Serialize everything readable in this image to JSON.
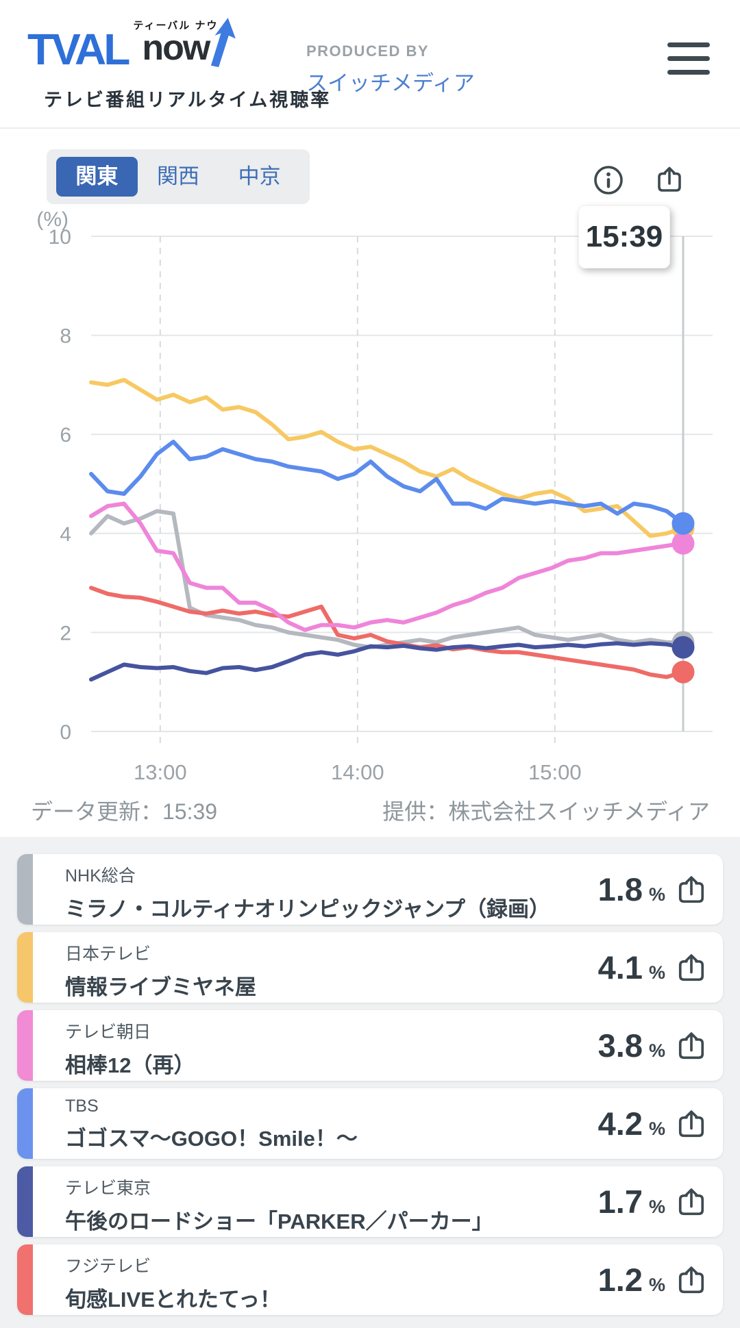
{
  "header": {
    "brand": {
      "main": "TVAL",
      "sub": "now",
      "ruby": "ティーバル ナウ",
      "tagline": "テレビ番組リアルタイム視聴率"
    },
    "produced_by_label": "PRODUCED BY",
    "produced_by_name": "スイッチメディア"
  },
  "region_tabs": [
    {
      "label": "関東",
      "active": true
    },
    {
      "label": "関西",
      "active": false
    },
    {
      "label": "中京",
      "active": false
    }
  ],
  "time_tooltip": "15:39",
  "chart_data": {
    "type": "line",
    "title": "テレビ番組リアルタイム視聴率（関東）",
    "y_axis_label": "(%)",
    "ylim": [
      0,
      10
    ],
    "y_ticks": [
      0,
      2,
      4,
      6,
      8,
      10
    ],
    "x_start": "12:39",
    "x_end": "15:39",
    "step_minutes": 5,
    "t_max": 180,
    "grid": true,
    "x_ticks": [
      {
        "label": "13:00",
        "t": 21
      },
      {
        "label": "14:00",
        "t": 81
      },
      {
        "label": "15:00",
        "t": 141
      }
    ],
    "series": [
      {
        "name": "NHK総合",
        "color": "#b4b8bf",
        "end_value": 1.8,
        "values": [
          4.0,
          4.35,
          4.2,
          4.3,
          4.45,
          4.4,
          2.5,
          2.35,
          2.3,
          2.25,
          2.15,
          2.1,
          2.0,
          1.95,
          1.9,
          1.85,
          1.75,
          1.7,
          1.75,
          1.8,
          1.85,
          1.8,
          1.9,
          1.95,
          2.0,
          2.05,
          2.1,
          1.95,
          1.9,
          1.85,
          1.9,
          1.95,
          1.85,
          1.8,
          1.85,
          1.8,
          1.8
        ]
      },
      {
        "name": "日本テレビ",
        "color": "#f7c963",
        "end_value": 4.1,
        "values": [
          7.05,
          7.0,
          7.1,
          6.9,
          6.7,
          6.8,
          6.65,
          6.75,
          6.5,
          6.55,
          6.45,
          6.2,
          5.9,
          5.95,
          6.05,
          5.85,
          5.7,
          5.75,
          5.6,
          5.45,
          5.25,
          5.15,
          5.3,
          5.1,
          4.95,
          4.8,
          4.7,
          4.8,
          4.85,
          4.7,
          4.45,
          4.5,
          4.55,
          4.25,
          3.95,
          4.0,
          4.1
        ]
      },
      {
        "name": "フジテレビ",
        "color": "#ee6b67",
        "end_value": 1.2,
        "values": [
          2.9,
          2.78,
          2.72,
          2.7,
          2.62,
          2.52,
          2.42,
          2.38,
          2.44,
          2.38,
          2.42,
          2.35,
          2.32,
          2.42,
          2.52,
          1.95,
          1.88,
          1.95,
          1.82,
          1.76,
          1.7,
          1.74,
          1.66,
          1.7,
          1.64,
          1.6,
          1.6,
          1.55,
          1.5,
          1.45,
          1.4,
          1.35,
          1.3,
          1.25,
          1.15,
          1.1,
          1.2
        ]
      },
      {
        "name": "テレビ朝日",
        "color": "#ef85d9",
        "end_value": 3.8,
        "values": [
          4.35,
          4.55,
          4.6,
          4.2,
          3.65,
          3.6,
          3.0,
          2.9,
          2.9,
          2.6,
          2.6,
          2.45,
          2.2,
          2.05,
          2.15,
          2.15,
          2.1,
          2.2,
          2.25,
          2.2,
          2.3,
          2.4,
          2.55,
          2.65,
          2.8,
          2.9,
          3.1,
          3.2,
          3.3,
          3.45,
          3.5,
          3.6,
          3.6,
          3.65,
          3.7,
          3.75,
          3.8
        ]
      },
      {
        "name": "テレビ東京",
        "color": "#46539e",
        "end_value": 1.7,
        "values": [
          1.05,
          1.2,
          1.35,
          1.3,
          1.28,
          1.3,
          1.22,
          1.18,
          1.28,
          1.3,
          1.24,
          1.3,
          1.42,
          1.55,
          1.6,
          1.55,
          1.62,
          1.72,
          1.7,
          1.73,
          1.68,
          1.65,
          1.7,
          1.72,
          1.68,
          1.72,
          1.75,
          1.7,
          1.72,
          1.75,
          1.72,
          1.76,
          1.78,
          1.75,
          1.78,
          1.76,
          1.7
        ]
      },
      {
        "name": "TBS",
        "color": "#5b8bed",
        "end_value": 4.2,
        "values": [
          5.2,
          4.85,
          4.8,
          5.15,
          5.6,
          5.85,
          5.5,
          5.55,
          5.7,
          5.6,
          5.5,
          5.45,
          5.35,
          5.3,
          5.25,
          5.1,
          5.2,
          5.45,
          5.15,
          4.95,
          4.85,
          5.1,
          4.6,
          4.6,
          4.5,
          4.7,
          4.65,
          4.6,
          4.65,
          4.6,
          4.55,
          4.6,
          4.4,
          4.6,
          4.55,
          4.45,
          4.2
        ]
      }
    ]
  },
  "footer": {
    "updated": "データ更新：15:39",
    "provider": "提供：株式会社スイッチメディア"
  },
  "programs": [
    {
      "channel": "NHK総合",
      "title": "ミラノ・コルティナオリンピックジャンプ（録画）",
      "value": "1.8",
      "unit": "%",
      "color": "#b2b8c0"
    },
    {
      "channel": "日本テレビ",
      "title": "情報ライブミヤネ屋",
      "value": "4.1",
      "unit": "%",
      "color": "#f6c66a"
    },
    {
      "channel": "テレビ朝日",
      "title": "相棒12（再）",
      "value": "3.8",
      "unit": "%",
      "color": "#f18bd4"
    },
    {
      "channel": "TBS",
      "title": "ゴゴスマ〜GOGO！Smile！〜",
      "value": "4.2",
      "unit": "%",
      "color": "#6b93ee"
    },
    {
      "channel": "テレビ東京",
      "title": "午後のロードショー「PARKER／パーカー」",
      "value": "1.7",
      "unit": "%",
      "color": "#4d5aa4"
    },
    {
      "channel": "フジテレビ",
      "title": "旬感LIVEとれたてっ！",
      "value": "1.2",
      "unit": "%",
      "color": "#f0716e"
    }
  ]
}
